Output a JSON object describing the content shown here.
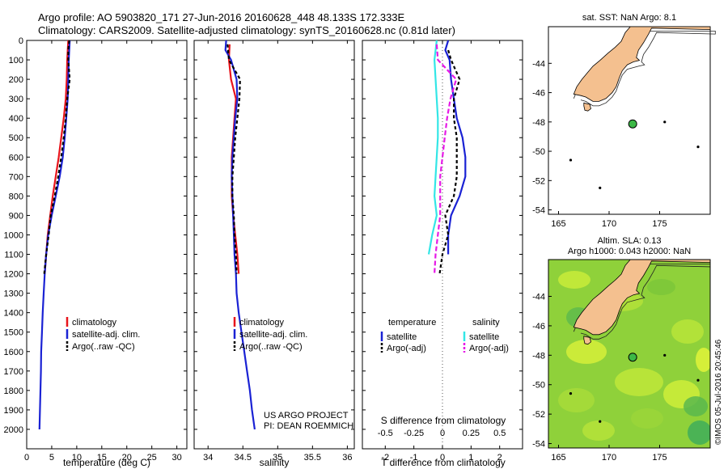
{
  "header": {
    "line1": "Argo profile: AO 5903820_171 27-Jun-2016 20160628_448 48.133S 172.333E",
    "line2": "Climatology: CARS2009. Satellite-adjusted climatology: synTS_20160628.nc (0.81d later)"
  },
  "colors": {
    "climatology": "#e8141b",
    "satellite": "#1a22d4",
    "argo": "#000000",
    "sat_s": "#33e6e6",
    "argo_s": "#e619e6",
    "land": "#f4c08f",
    "sst_bg": "#ffffff"
  },
  "chart_data": [
    {
      "type": "line",
      "panel": "temperature",
      "xlabel": "temperature (deg C)",
      "ylabel": "",
      "xlim": [
        0,
        32
      ],
      "ylim": [
        2100,
        0
      ],
      "x_ticks": [
        "0",
        "5",
        "10",
        "15",
        "20",
        "25",
        "30"
      ],
      "y_ticks": [
        "0",
        "100",
        "200",
        "300",
        "400",
        "500",
        "600",
        "700",
        "800",
        "900",
        "1000",
        "1100",
        "1200",
        "1300",
        "1400",
        "1500",
        "1600",
        "1700",
        "1800",
        "1900",
        "2000"
      ],
      "legend": [
        "climatology",
        "satellite-adj. clim.",
        "Argo(..raw -QC)"
      ],
      "series": [
        {
          "name": "climatology",
          "color_key": "climatology",
          "dash": "",
          "points": [
            [
              8.3,
              0
            ],
            [
              8.2,
              50
            ],
            [
              8.1,
              100
            ],
            [
              8.0,
              200
            ],
            [
              7.8,
              300
            ],
            [
              7.4,
              400
            ],
            [
              6.9,
              500
            ],
            [
              6.4,
              600
            ],
            [
              5.8,
              700
            ],
            [
              5.2,
              800
            ],
            [
              4.7,
              900
            ],
            [
              4.2,
              1000
            ],
            [
              3.9,
              1100
            ],
            [
              3.6,
              1200
            ]
          ]
        },
        {
          "name": "satellite-adj. clim.",
          "color_key": "satellite",
          "dash": "",
          "points": [
            [
              8.6,
              0
            ],
            [
              8.4,
              100
            ],
            [
              8.3,
              200
            ],
            [
              8.2,
              300
            ],
            [
              7.9,
              400
            ],
            [
              7.6,
              500
            ],
            [
              7.2,
              600
            ],
            [
              6.6,
              700
            ],
            [
              5.8,
              800
            ],
            [
              5.0,
              900
            ],
            [
              4.3,
              1000
            ],
            [
              3.9,
              1100
            ],
            [
              3.6,
              1200
            ],
            [
              3.4,
              1300
            ],
            [
              3.2,
              1400
            ],
            [
              3.05,
              1500
            ],
            [
              2.9,
              1600
            ],
            [
              2.85,
              1700
            ],
            [
              2.75,
              1800
            ],
            [
              2.65,
              1900
            ],
            [
              2.55,
              2000
            ]
          ]
        },
        {
          "name": "Argo(..raw -QC)",
          "color_key": "argo",
          "dash": "4,3",
          "points": [
            [
              8.5,
              0
            ],
            [
              8.3,
              50
            ],
            [
              8.3,
              100
            ],
            [
              8.6,
              200
            ],
            [
              8.1,
              300
            ],
            [
              7.8,
              400
            ],
            [
              7.4,
              500
            ],
            [
              6.9,
              600
            ],
            [
              6.3,
              700
            ],
            [
              5.6,
              800
            ],
            [
              4.8,
              900
            ],
            [
              4.4,
              1000
            ],
            [
              3.9,
              1100
            ],
            [
              3.5,
              1200
            ]
          ]
        }
      ]
    },
    {
      "type": "line",
      "panel": "salinity",
      "xlabel": "salinity",
      "xlim": [
        33.8,
        36.1
      ],
      "ylim": [
        2100,
        0
      ],
      "x_ticks": [
        "34",
        "34.5",
        "35",
        "35.5",
        "36"
      ],
      "legend": [
        "climatology",
        "satellite-adj. clim.",
        "Argo(..raw -QC)"
      ],
      "annotation": [
        "US ARGO PROJECT",
        "PI: DEAN ROEMMICH"
      ],
      "series": [
        {
          "name": "climatology",
          "color_key": "climatology",
          "dash": "",
          "points": [
            [
              34.31,
              20
            ],
            [
              34.3,
              100
            ],
            [
              34.33,
              200
            ],
            [
              34.4,
              300
            ],
            [
              34.38,
              400
            ],
            [
              34.36,
              500
            ],
            [
              34.34,
              600
            ],
            [
              34.34,
              700
            ],
            [
              34.34,
              800
            ],
            [
              34.36,
              900
            ],
            [
              34.39,
              1000
            ],
            [
              34.42,
              1100
            ],
            [
              34.44,
              1200
            ]
          ]
        },
        {
          "name": "satellite-adj. clim.",
          "color_key": "satellite",
          "dash": "",
          "points": [
            [
              34.26,
              0
            ],
            [
              34.25,
              50
            ],
            [
              34.33,
              100
            ],
            [
              34.41,
              200
            ],
            [
              34.42,
              300
            ],
            [
              34.39,
              400
            ],
            [
              34.37,
              500
            ],
            [
              34.35,
              600
            ],
            [
              34.34,
              700
            ],
            [
              34.35,
              800
            ],
            [
              34.36,
              900
            ],
            [
              34.37,
              1000
            ],
            [
              34.38,
              1100
            ],
            [
              34.4,
              1200
            ],
            [
              34.41,
              1300
            ],
            [
              34.44,
              1400
            ],
            [
              34.48,
              1500
            ],
            [
              34.52,
              1600
            ],
            [
              34.56,
              1700
            ],
            [
              34.6,
              1800
            ],
            [
              34.63,
              1900
            ],
            [
              34.67,
              2000
            ]
          ]
        },
        {
          "name": "Argo(..raw -QC)",
          "color_key": "argo",
          "dash": "4,3",
          "points": [
            [
              34.28,
              20
            ],
            [
              34.3,
              100
            ],
            [
              34.46,
              200
            ],
            [
              34.45,
              300
            ],
            [
              34.42,
              400
            ],
            [
              34.39,
              500
            ],
            [
              34.37,
              600
            ],
            [
              34.35,
              700
            ],
            [
              34.35,
              800
            ],
            [
              34.37,
              900
            ],
            [
              34.38,
              1000
            ],
            [
              34.4,
              1100
            ],
            [
              34.41,
              1200
            ]
          ]
        }
      ]
    },
    {
      "type": "line",
      "panel": "difference",
      "xlabel": "T difference from climatology",
      "xlabel_top": "S difference from climatology",
      "xlim": [
        -2.8,
        2.8
      ],
      "ylim": [
        2100,
        0
      ],
      "x_ticks": [
        "-2",
        "-1",
        "0",
        "1",
        "2"
      ],
      "x_ticks_top": [
        "-0.5",
        "-0.25",
        "0",
        "0.25",
        "0.5"
      ],
      "legend_titles": [
        "temperature",
        "salinity"
      ],
      "legend": [
        "satellite",
        "Argo(-adj)",
        "satellite",
        "Argo(-adj)"
      ],
      "series": [
        {
          "name": "satellite",
          "color_key": "satellite",
          "dash": "",
          "points": [
            [
              0.2,
              0
            ],
            [
              0.1,
              50
            ],
            [
              0.25,
              100
            ],
            [
              0.3,
              200
            ],
            [
              0.4,
              300
            ],
            [
              0.5,
              400
            ],
            [
              0.7,
              500
            ],
            [
              0.8,
              600
            ],
            [
              0.8,
              700
            ],
            [
              0.6,
              800
            ],
            [
              0.3,
              900
            ],
            [
              0.2,
              1000
            ],
            [
              0.2,
              1100
            ]
          ]
        },
        {
          "name": "Argo(-adj)",
          "color_key": "argo",
          "dash": "4,3",
          "points": [
            [
              0.2,
              50
            ],
            [
              0.3,
              100
            ],
            [
              0.6,
              200
            ],
            [
              0.4,
              300
            ],
            [
              0.4,
              400
            ],
            [
              0.5,
              500
            ],
            [
              0.5,
              600
            ],
            [
              0.5,
              700
            ],
            [
              0.4,
              800
            ],
            [
              0.1,
              900
            ],
            [
              0.2,
              1000
            ],
            [
              0.0,
              1100
            ],
            [
              -0.1,
              1200
            ]
          ]
        },
        {
          "name": "satellite",
          "color_key": "sat_s",
          "dash": "",
          "points": [
            [
              -0.05,
              0
            ],
            [
              -0.07,
              100
            ],
            [
              -0.06,
              200
            ],
            [
              -0.05,
              300
            ],
            [
              -0.04,
              400
            ],
            [
              -0.04,
              500
            ],
            [
              -0.05,
              600
            ],
            [
              -0.06,
              700
            ],
            [
              -0.07,
              800
            ],
            [
              -0.05,
              900
            ],
            [
              -0.09,
              1000
            ],
            [
              -0.12,
              1100
            ]
          ]
        },
        {
          "name": "Argo(-adj)",
          "color_key": "argo_s",
          "dash": "6,3",
          "points": [
            [
              -0.05,
              20
            ],
            [
              -0.04,
              100
            ],
            [
              0.12,
              200
            ],
            [
              0.07,
              300
            ],
            [
              0.04,
              400
            ],
            [
              0.02,
              500
            ],
            [
              0.0,
              600
            ],
            [
              -0.02,
              700
            ],
            [
              -0.02,
              800
            ],
            [
              -0.02,
              900
            ],
            [
              -0.04,
              1000
            ],
            [
              -0.06,
              1100
            ],
            [
              -0.07,
              1200
            ]
          ]
        }
      ]
    }
  ],
  "maps": {
    "x_ticks": [
      "165",
      "170",
      "175"
    ],
    "y_ticks": [
      "-44",
      "-46",
      "-48",
      "-50",
      "-52",
      "-54"
    ],
    "lon_range": [
      164,
      180
    ],
    "lat_range": [
      -54.3,
      -41.5
    ],
    "float_position": {
      "lon": 172.333,
      "lat": -48.133
    },
    "sst_title": "sat. SST: NaN Argo: 8.1",
    "sla_title_1": "Altim. SLA: 0.13",
    "sla_title_2": "Argo h1000: 0.043 h2000: NaN",
    "credit": "©IMOS 05-Jul-2016 20:45:46"
  }
}
